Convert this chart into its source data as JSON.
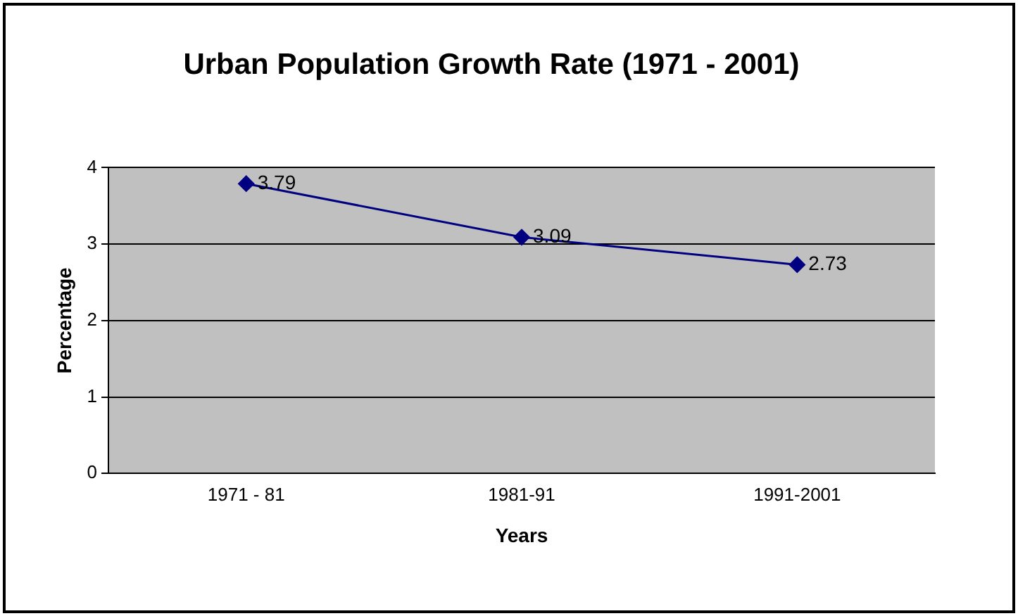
{
  "chart_data": {
    "type": "line",
    "title": "Urban Population Growth Rate (1971 - 2001)",
    "xlabel": "Years",
    "ylabel": "Percentage",
    "categories": [
      "1971 - 81",
      "1981-91",
      "1991-2001"
    ],
    "series": [
      {
        "color": "#000080",
        "values": [
          3.79,
          3.09,
          2.73
        ]
      }
    ],
    "ylim": [
      0,
      4
    ],
    "yticks": [
      0,
      1,
      2,
      3,
      4
    ],
    "grid": "y",
    "legend": false,
    "marker": "diamond",
    "line_style": "solid",
    "data_labels": true
  }
}
